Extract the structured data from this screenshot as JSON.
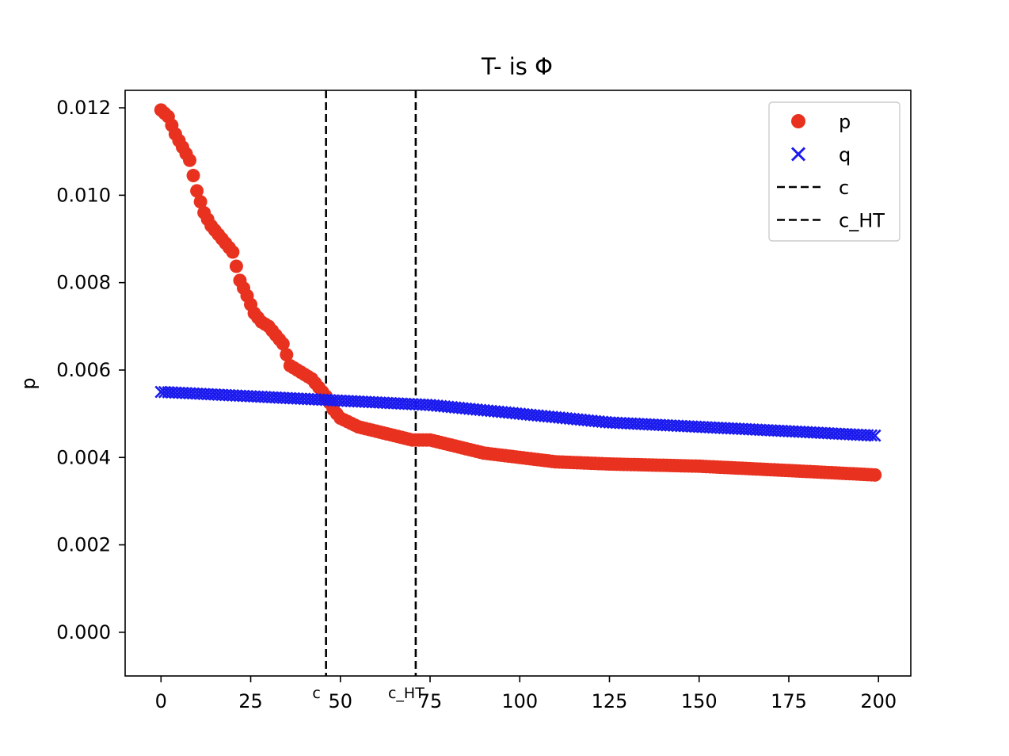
{
  "chart_data": {
    "type": "scatter",
    "title": "T- is Φ",
    "xlabel": "",
    "ylabel": "p",
    "xlim": [
      -10,
      209
    ],
    "ylim": [
      -0.001,
      0.0124
    ],
    "xticks": [
      0,
      25,
      50,
      75,
      100,
      125,
      150,
      175,
      200
    ],
    "xtick_labels": [
      "0",
      "25",
      "50",
      "75",
      "100",
      "125",
      "150",
      "175",
      "200"
    ],
    "yticks": [
      0.0,
      0.002,
      0.004,
      0.006,
      0.008,
      0.01,
      0.012
    ],
    "ytick_labels": [
      "0.000",
      "0.002",
      "0.004",
      "0.006",
      "0.008",
      "0.010",
      "0.012"
    ],
    "grid": false,
    "legend_position": "top-right",
    "series": [
      {
        "name": "p",
        "marker": "circle",
        "color": "#e8311f",
        "n_points": 200,
        "x_start": 0,
        "anchors_x": [
          0,
          2,
          4,
          6,
          8,
          10,
          12,
          14,
          16,
          18,
          20,
          22,
          24,
          26,
          28,
          30,
          32,
          34,
          36,
          38,
          40,
          42,
          44,
          46,
          48,
          50,
          55,
          60,
          65,
          70,
          75,
          80,
          90,
          100,
          110,
          125,
          150,
          175,
          199
        ],
        "anchors_y": [
          0.01195,
          0.0118,
          0.0114,
          0.0111,
          0.0108,
          0.0101,
          0.0096,
          0.0093,
          0.0091,
          0.0089,
          0.0087,
          0.00805,
          0.0077,
          0.0073,
          0.0071,
          0.007,
          0.0068,
          0.0066,
          0.0061,
          0.006,
          0.0059,
          0.0058,
          0.0056,
          0.0054,
          0.0051,
          0.0049,
          0.0047,
          0.0046,
          0.0045,
          0.0044,
          0.0044,
          0.0043,
          0.0041,
          0.004,
          0.0039,
          0.00385,
          0.0038,
          0.0037,
          0.0036
        ]
      },
      {
        "name": "q",
        "marker": "x",
        "color": "#1a1aee",
        "n_points": 200,
        "x_start": 0,
        "anchors_x": [
          0,
          25,
          50,
          75,
          100,
          125,
          150,
          175,
          199
        ],
        "anchors_y": [
          0.0055,
          0.0054,
          0.0053,
          0.0052,
          0.005,
          0.0048,
          0.0047,
          0.0046,
          0.0045
        ]
      }
    ],
    "vlines": [
      {
        "name": "c",
        "x": 46,
        "style": "dashed",
        "color": "#000000",
        "label": "c"
      },
      {
        "name": "c_HT",
        "x": 71,
        "style": "dashed",
        "color": "#000000",
        "label": "c_HT"
      }
    ]
  }
}
